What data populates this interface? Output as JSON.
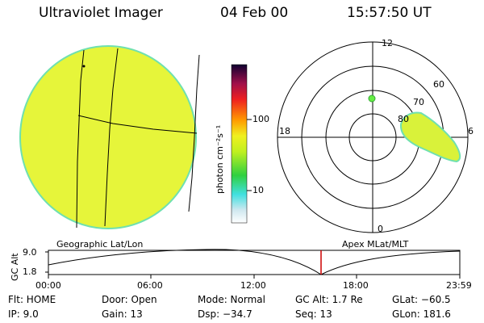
{
  "header": {
    "instrument": "Ultraviolet Imager",
    "date": "04 Feb 00",
    "time": "15:57:50 UT"
  },
  "colorbar": {
    "unit_label": "photon cm⁻²s⁻¹",
    "ticks": [
      "100",
      "10"
    ]
  },
  "polar": {
    "mlt_labels": [
      "12",
      "18",
      "6",
      "0"
    ],
    "lat_labels": [
      "60",
      "70",
      "80"
    ]
  },
  "map_labels": {
    "left": "Geographic Lat/Lon",
    "right": "Apex MLat/MLT"
  },
  "altitude_plot": {
    "axis_label": "GC Alt",
    "y_ticks": [
      "9.0",
      "1.8"
    ],
    "x_ticks": [
      "00:00",
      "06:00",
      "12:00",
      "18:00",
      "23:59"
    ],
    "current_marker_color": "#cc0000"
  },
  "info": {
    "filter": "Flt: HOME",
    "door": "Door: Open",
    "mode": "Mode: Normal",
    "gc_alt": "GC Alt: 1.7 Re",
    "glat": "GLat: −60.5",
    "ip": "IP: 9.0",
    "gain": "Gain: 13",
    "dsp": "Dsp: −34.7",
    "seq": "Seq: 13",
    "glon": "GLon: 181.6"
  },
  "colors": {
    "emission_fill": "#e6f53a",
    "emission_edge": "#6fe0b0",
    "auroral_oval": "#d9f23a",
    "spot": "#66ee44"
  }
}
